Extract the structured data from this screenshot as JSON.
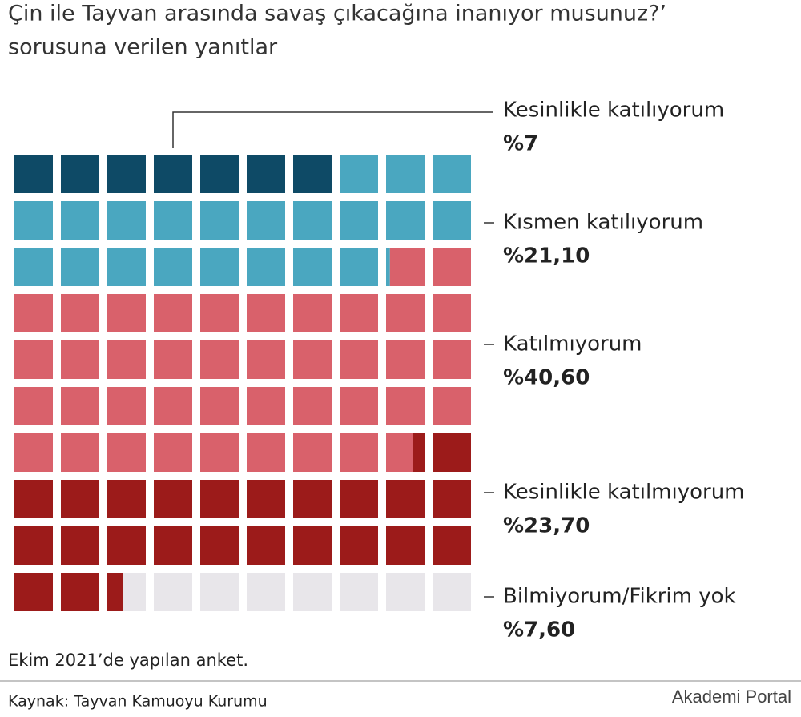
{
  "chart_data": {
    "type": "waffle",
    "title": [
      "Çin ile Tayvan arasında savaş çıkacağına inanıyor musunuz?’",
      "sorusuna verilen yanıtlar"
    ],
    "categories": [
      "Kesinlikle katılıyorum",
      "Kısmen katılıyorum",
      "Katılmıyorum",
      "Kesinlikle katılmıyorum",
      "Bilmiyorum/Fikrim yok"
    ],
    "values": [
      7,
      21.1,
      40.6,
      23.7,
      7.6
    ],
    "value_labels": [
      "%7",
      "%21,10",
      "%40,60",
      "%23,70",
      "%7,60"
    ],
    "colors": [
      "#0e4a66",
      "#4aa7c0",
      "#d9616b",
      "#9c1b1a",
      "#e8e6ea"
    ],
    "footnote": "Ekim 2021’de yapılan anket.",
    "source": "Kaynak: Tayvan Kamuoyu Kurumu",
    "watermark": "Akademi Portal"
  }
}
